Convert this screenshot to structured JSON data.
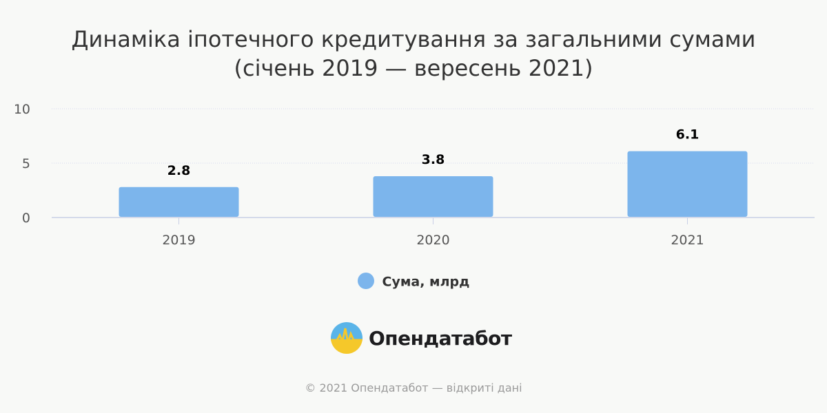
{
  "title_line1": "Динаміка іпотечного кредитування за загальними сумами",
  "title_line2": "(січень 2019 — вересень 2021)",
  "legend_label": "Сума, млрд",
  "brand": "Опендатабот",
  "footer": "© 2021 Опендатабот — відкриті дані",
  "colors": {
    "bar": "#7cb5ec",
    "grid": "#d4d8ef",
    "axis": "#c8cfe6",
    "label": "#000000",
    "tick": "#555555"
  },
  "chart_data": {
    "type": "bar",
    "categories": [
      "2019",
      "2020",
      "2021"
    ],
    "series": [
      {
        "name": "Сума, млрд",
        "values": [
          2.8,
          3.8,
          6.1
        ]
      }
    ],
    "data_labels": [
      "2.8",
      "3.8",
      "6.1"
    ],
    "ylim": [
      0,
      10
    ],
    "yticks": [
      0,
      5,
      10
    ],
    "grid": true,
    "legend_position": "bottom"
  }
}
